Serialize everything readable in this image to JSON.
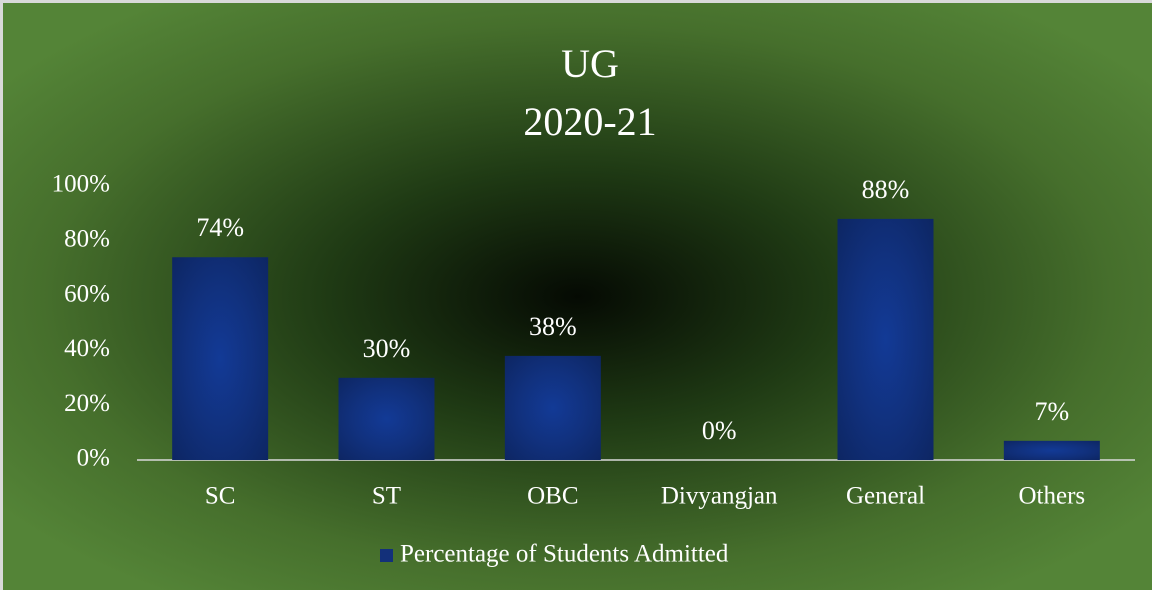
{
  "chart_data": {
    "type": "bar",
    "title": "UG",
    "subtitle": "2020-21",
    "categories": [
      "SC",
      "ST",
      "OBC",
      "Divyangjan",
      "General",
      "Others"
    ],
    "series": [
      {
        "name": "Percentage of Students Admitted",
        "color": "#13307a",
        "values": [
          74,
          30,
          38,
          0,
          88,
          7
        ],
        "value_labels": [
          "74%",
          "30%",
          "38%",
          "0%",
          "88%",
          "7%"
        ]
      }
    ],
    "ylim": [
      0,
      100
    ],
    "yticks": [
      {
        "value": 0,
        "label": "0%"
      },
      {
        "value": 20,
        "label": "20%"
      },
      {
        "value": 40,
        "label": "40%"
      },
      {
        "value": 60,
        "label": "60%"
      },
      {
        "value": 80,
        "label": "80%"
      },
      {
        "value": 100,
        "label": "100%"
      }
    ],
    "grid": false,
    "legend": "bottom"
  }
}
